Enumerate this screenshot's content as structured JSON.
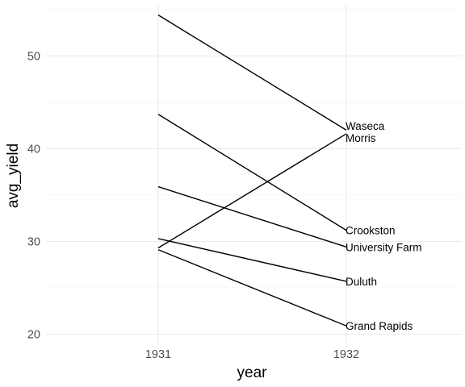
{
  "chart_data": {
    "type": "line",
    "xlabel": "year",
    "ylabel": "avg_yield",
    "categories": [
      "1931",
      "1932"
    ],
    "ylim": [
      19.0,
      55.5
    ],
    "y_ticks": [
      20,
      30,
      40,
      50
    ],
    "grid": true,
    "legend": "none",
    "series": [
      {
        "name": "Waseca",
        "values": [
          54.4,
          42.0
        ]
      },
      {
        "name": "Morris",
        "values": [
          29.3,
          41.6
        ]
      },
      {
        "name": "Crookston",
        "values": [
          43.7,
          31.2
        ]
      },
      {
        "name": "University Farm",
        "values": [
          35.9,
          29.4
        ]
      },
      {
        "name": "Duluth",
        "values": [
          30.3,
          25.7
        ]
      },
      {
        "name": "Grand Rapids",
        "values": [
          29.1,
          20.9
        ]
      }
    ]
  }
}
